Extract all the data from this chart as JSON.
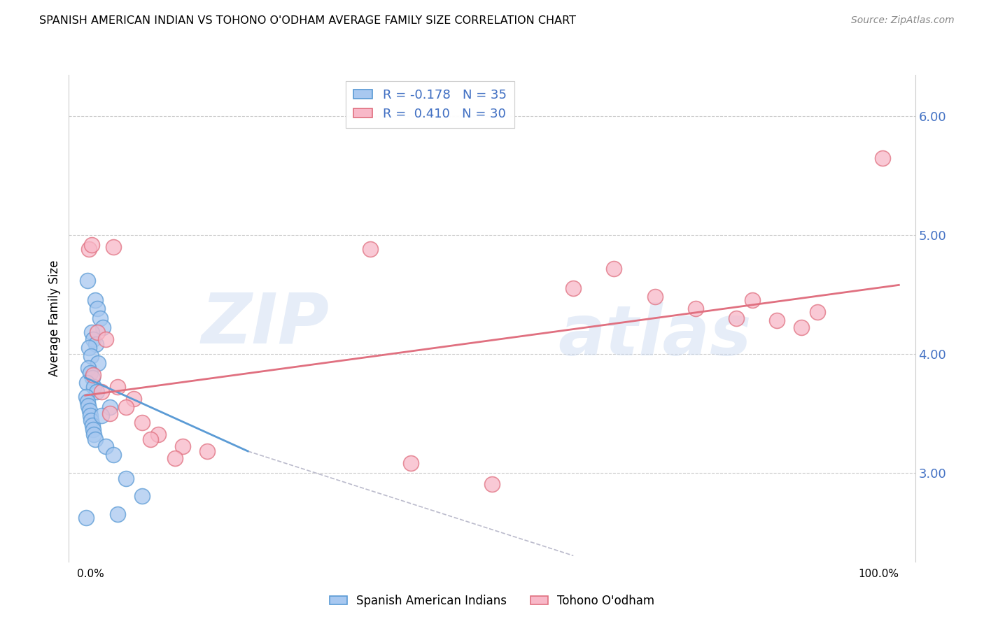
{
  "title": "SPANISH AMERICAN INDIAN VS TOHONO O'ODHAM AVERAGE FAMILY SIZE CORRELATION CHART",
  "source": "Source: ZipAtlas.com",
  "ylabel": "Average Family Size",
  "legend_label1": "R = -0.178   N = 35",
  "legend_label2": "R =  0.410   N = 30",
  "color_blue": "#A8C8F0",
  "color_pink": "#F8B8C8",
  "color_blue_line": "#5B9BD5",
  "color_pink_line": "#E07080",
  "color_dashed": "#BBBBCC",
  "color_right_axis": "#4472C4",
  "blue_points": [
    [
      0.3,
      4.62
    ],
    [
      1.2,
      4.45
    ],
    [
      1.5,
      4.38
    ],
    [
      1.8,
      4.3
    ],
    [
      2.2,
      4.22
    ],
    [
      0.8,
      4.18
    ],
    [
      1.0,
      4.12
    ],
    [
      1.3,
      4.08
    ],
    [
      0.5,
      4.05
    ],
    [
      0.7,
      3.98
    ],
    [
      1.6,
      3.92
    ],
    [
      0.4,
      3.88
    ],
    [
      0.6,
      3.84
    ],
    [
      0.9,
      3.8
    ],
    [
      0.2,
      3.76
    ],
    [
      1.1,
      3.72
    ],
    [
      1.4,
      3.68
    ],
    [
      0.15,
      3.64
    ],
    [
      0.25,
      3.6
    ],
    [
      0.35,
      3.56
    ],
    [
      0.55,
      3.52
    ],
    [
      0.65,
      3.48
    ],
    [
      0.75,
      3.44
    ],
    [
      0.85,
      3.4
    ],
    [
      0.95,
      3.36
    ],
    [
      1.05,
      3.32
    ],
    [
      1.25,
      3.28
    ],
    [
      2.5,
      3.22
    ],
    [
      3.5,
      3.15
    ],
    [
      5.0,
      2.95
    ],
    [
      7.0,
      2.8
    ],
    [
      3.0,
      3.55
    ],
    [
      2.0,
      3.48
    ],
    [
      4.0,
      2.65
    ],
    [
      0.1,
      2.62
    ]
  ],
  "pink_points": [
    [
      0.5,
      4.88
    ],
    [
      0.8,
      4.92
    ],
    [
      3.5,
      4.9
    ],
    [
      35.0,
      4.88
    ],
    [
      1.5,
      4.18
    ],
    [
      2.5,
      4.12
    ],
    [
      1.0,
      3.82
    ],
    [
      4.0,
      3.72
    ],
    [
      2.0,
      3.68
    ],
    [
      6.0,
      3.62
    ],
    [
      5.0,
      3.55
    ],
    [
      3.0,
      3.5
    ],
    [
      7.0,
      3.42
    ],
    [
      9.0,
      3.32
    ],
    [
      8.0,
      3.28
    ],
    [
      12.0,
      3.22
    ],
    [
      15.0,
      3.18
    ],
    [
      11.0,
      3.12
    ],
    [
      40.0,
      3.08
    ],
    [
      50.0,
      2.9
    ],
    [
      60.0,
      4.55
    ],
    [
      65.0,
      4.72
    ],
    [
      70.0,
      4.48
    ],
    [
      75.0,
      4.38
    ],
    [
      80.0,
      4.3
    ],
    [
      82.0,
      4.45
    ],
    [
      85.0,
      4.28
    ],
    [
      88.0,
      4.22
    ],
    [
      90.0,
      4.35
    ],
    [
      98.0,
      5.65
    ]
  ],
  "blue_line": {
    "x0": 0,
    "x1": 20,
    "y0": 3.8,
    "y1": 3.18
  },
  "pink_line": {
    "x0": 0,
    "x1": 100,
    "y0": 3.65,
    "y1": 4.58
  },
  "dashed_line": {
    "x0": 20,
    "x1": 60,
    "y0": 3.18,
    "y1": 2.3
  },
  "xlim": [
    -2,
    102
  ],
  "ylim": [
    2.25,
    6.35
  ],
  "yticks": [
    3.0,
    4.0,
    5.0,
    6.0
  ],
  "background_color": "#FFFFFF",
  "grid_color": "#CCCCCC"
}
